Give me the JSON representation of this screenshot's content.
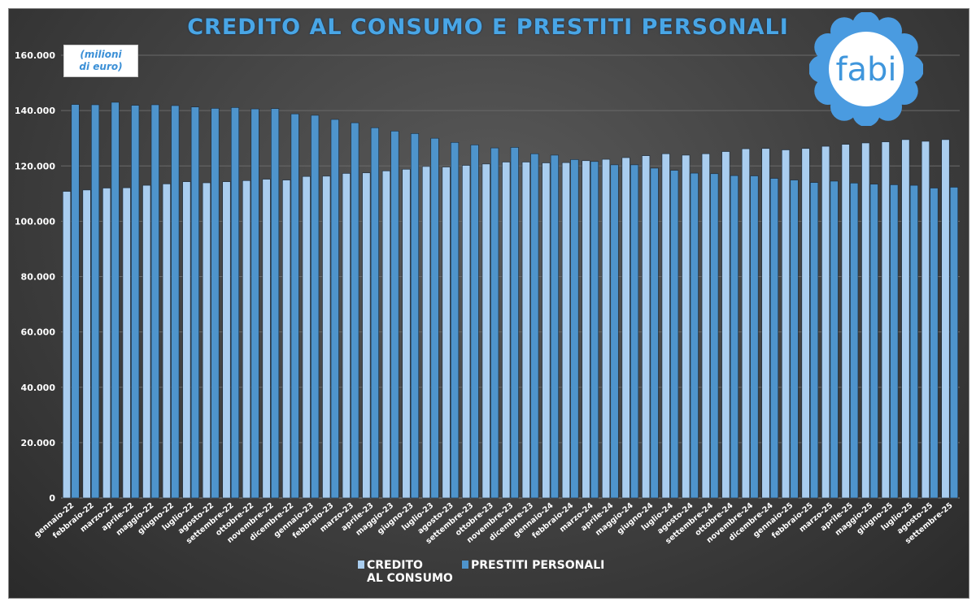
{
  "title": "CREDITO AL CONSUMO E PRESTITI PERSONALI",
  "units_line1": "(milioni",
  "units_line2": "di euro)",
  "logo_text": "fabi",
  "chart_data": {
    "type": "bar",
    "title": "CREDITO AL CONSUMO E PRESTITI PERSONALI",
    "ylabel": "milioni di euro",
    "ylim": [
      0,
      160000
    ],
    "yticks": [
      0,
      20000,
      40000,
      60000,
      80000,
      100000,
      120000,
      140000,
      160000
    ],
    "ytick_labels": [
      "0",
      "20.000",
      "40.000",
      "60.000",
      "80.000",
      "100.000",
      "120.000",
      "140.000",
      "160.000"
    ],
    "grid": true,
    "legend_placement": "bottom",
    "categories": [
      "gennaio-22",
      "febbraio-22",
      "marzo-22",
      "aprile-22",
      "maggio-22",
      "giugno-22",
      "luglio-22",
      "agosto-22",
      "settembre-22",
      "ottobre-22",
      "novembre-22",
      "dicembre-22",
      "gennaio-23",
      "febbraio-23",
      "marzo-23",
      "aprile-23",
      "maggio-23",
      "giugno-23",
      "luglio-23",
      "agosto-23",
      "settembre-23",
      "ottobre-23",
      "novembre-23",
      "dicembre-23",
      "gennaio-24",
      "febbraio-24",
      "marzo-24",
      "aprile-24",
      "maggio-24",
      "giugno-24",
      "luglio-24",
      "agosto-24",
      "settembre-24",
      "ottobre-24",
      "novembre-24",
      "dicembre-24",
      "gennaio-25",
      "febbraio-25",
      "marzo-25",
      "aprile-25",
      "maggio-25",
      "giugno-25",
      "luglio-25",
      "agosto-25",
      "settembre-25"
    ],
    "series": [
      {
        "name": "CREDITO AL CONSUMO",
        "legend_lines": [
          "CREDITO",
          "AL CONSUMO"
        ],
        "color": "#a9cdef",
        "values": [
          110800,
          111300,
          112000,
          112100,
          113000,
          113500,
          114300,
          113900,
          114300,
          114700,
          115200,
          114900,
          116200,
          116300,
          117300,
          117500,
          118200,
          118800,
          119800,
          119600,
          120200,
          120700,
          121400,
          121400,
          121100,
          121200,
          121900,
          122400,
          123000,
          123700,
          124400,
          123900,
          124400,
          125200,
          126200,
          126300,
          125800,
          126300,
          127100,
          127800,
          128300,
          128700,
          129500,
          128900,
          129500
        ]
      },
      {
        "name": "PRESTITI PERSONALI",
        "legend_lines": [
          "PRESTITI PERSONALI"
        ],
        "color": "#4e94cc",
        "values": [
          142200,
          142100,
          143000,
          141900,
          142100,
          141800,
          141300,
          140800,
          141100,
          140600,
          140700,
          138800,
          138300,
          136800,
          135600,
          133800,
          132600,
          131700,
          130000,
          128500,
          127600,
          126500,
          126700,
          124400,
          123900,
          122300,
          121600,
          120400,
          120400,
          119200,
          118400,
          117400,
          117200,
          116500,
          116400,
          115500,
          114900,
          114000,
          114500,
          113800,
          113400,
          113200,
          113000,
          112000,
          112300
        ]
      }
    ]
  }
}
